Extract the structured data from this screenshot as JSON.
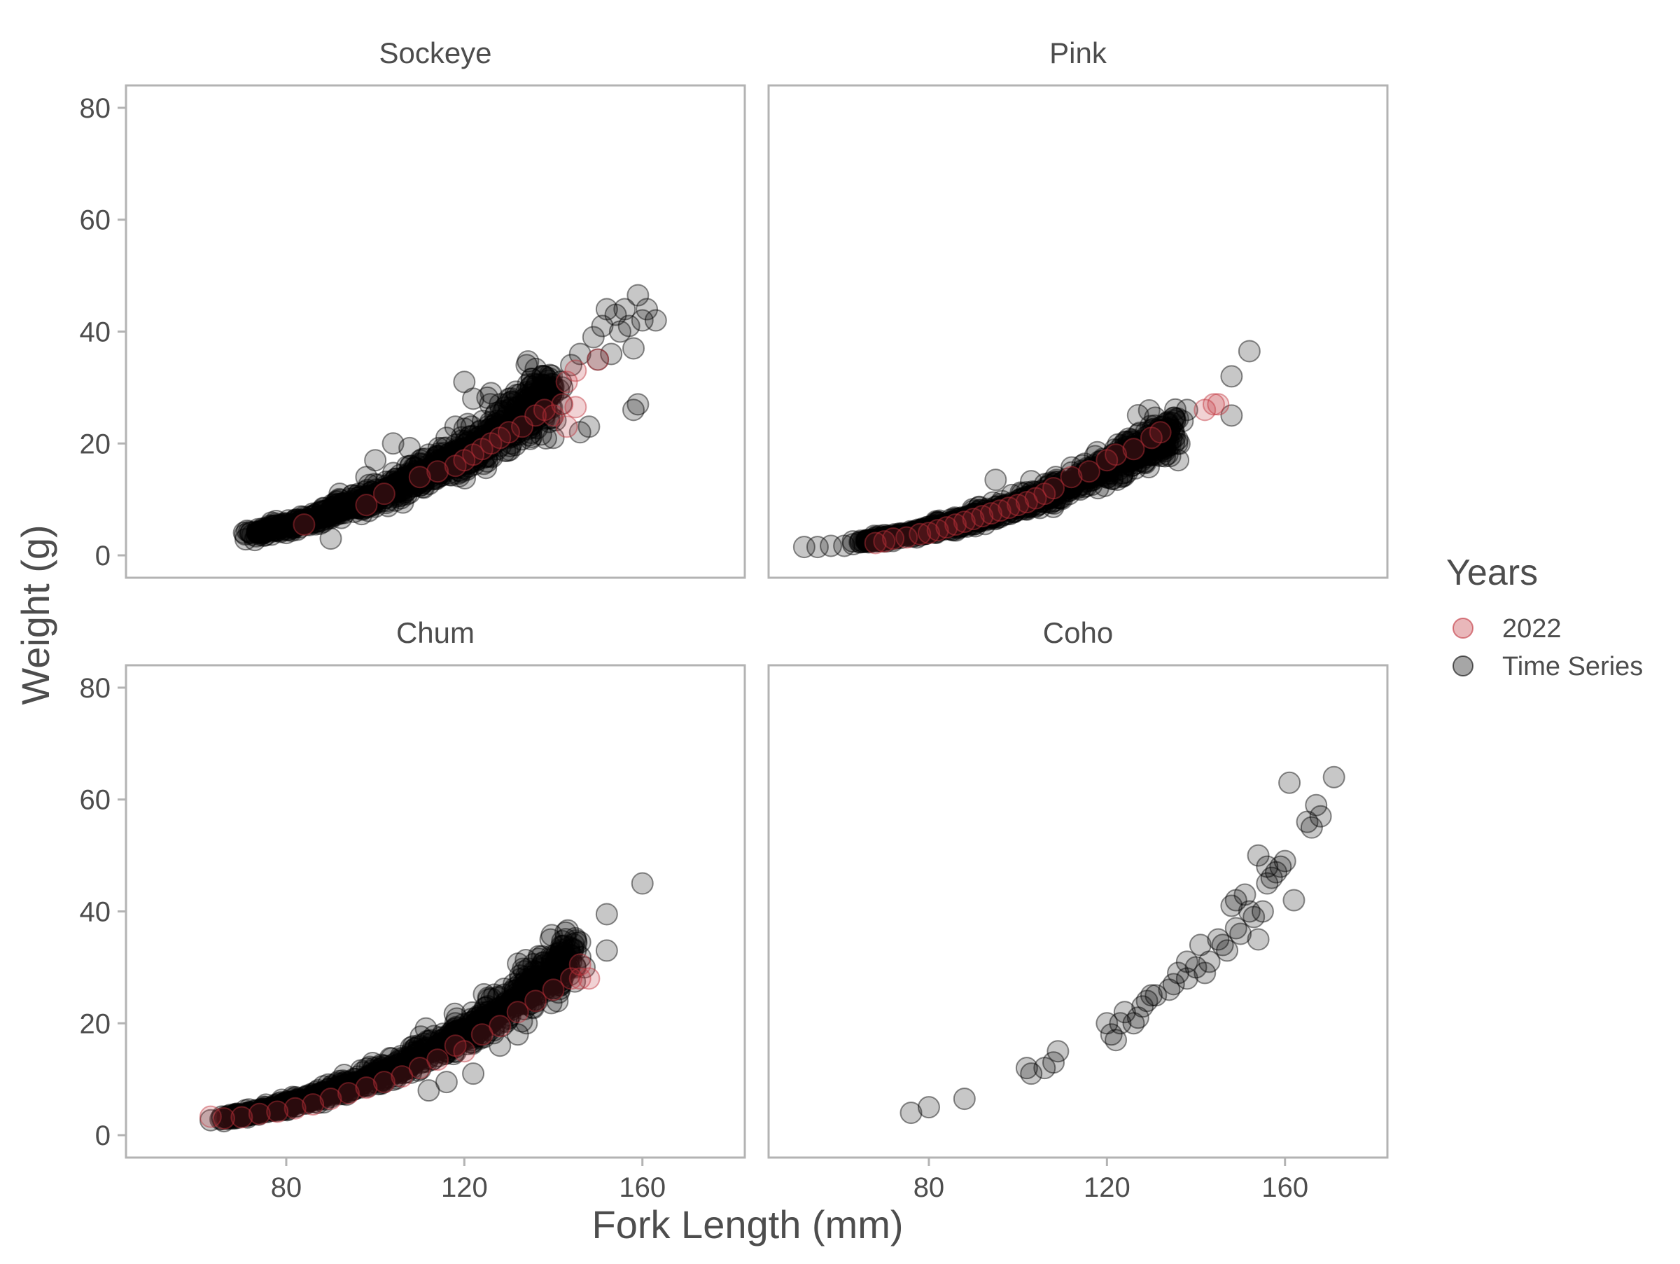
{
  "chart_data": {
    "type": "scatter",
    "xlabel": "Fork Length (mm)",
    "ylabel": "Weight (g)",
    "xlim": [
      44,
      183
    ],
    "ylim": [
      -4,
      84
    ],
    "xticks": [
      80,
      120,
      160
    ],
    "yticks": [
      0,
      20,
      40,
      60,
      80
    ],
    "grid": false,
    "legend": {
      "title": "Years",
      "position": "right",
      "entries": [
        {
          "label": "2022",
          "color": "#c0303a"
        },
        {
          "label": "Time Series",
          "color": "#1a1a1a"
        }
      ]
    },
    "colors": {
      "2022": "#c0303a",
      "Time Series": "#000000"
    },
    "panels": [
      {
        "title": "Sockeye",
        "time_series": {
          "dense_curve": {
            "a": 8.3e-06,
            "b": 3.05,
            "x_range": [
              72,
              140
            ],
            "scatter_sd": 0.1
          },
          "points": [
            [
              72,
              4
            ],
            [
              75,
              3.5
            ],
            [
              80,
              4
            ],
            [
              84,
              6
            ],
            [
              88,
              8
            ],
            [
              90,
              3
            ],
            [
              92,
              11
            ],
            [
              98,
              14
            ],
            [
              100,
              17
            ],
            [
              104,
              20
            ],
            [
              108,
              16
            ],
            [
              112,
              18
            ],
            [
              116,
              21
            ],
            [
              118,
              23
            ],
            [
              120,
              31
            ],
            [
              122,
              28
            ],
            [
              126,
              29
            ],
            [
              128,
              27
            ],
            [
              130,
              26
            ],
            [
              132,
              24
            ],
            [
              134,
              34
            ],
            [
              136,
              30
            ],
            [
              138,
              32
            ],
            [
              140,
              21
            ],
            [
              142,
              30
            ],
            [
              144,
              34
            ],
            [
              146,
              22
            ],
            [
              148,
              23
            ],
            [
              149,
              39
            ],
            [
              150,
              35
            ],
            [
              151,
              41
            ],
            [
              152,
              44
            ],
            [
              153,
              36
            ],
            [
              154,
              43
            ],
            [
              155,
              40
            ],
            [
              156,
              44
            ],
            [
              157,
              41
            ],
            [
              158,
              37
            ],
            [
              159,
              46.5
            ],
            [
              160,
              42
            ],
            [
              161,
              44
            ],
            [
              163,
              42
            ],
            [
              158,
              26
            ],
            [
              159,
              27
            ],
            [
              146,
              36
            ]
          ]
        },
        "y2022": {
          "points": [
            [
              84,
              5.5
            ],
            [
              98,
              9
            ],
            [
              102,
              11
            ],
            [
              110,
              14
            ],
            [
              114,
              15
            ],
            [
              118,
              16
            ],
            [
              120,
              17
            ],
            [
              122,
              18
            ],
            [
              124,
              19
            ],
            [
              126,
              20
            ],
            [
              128,
              21
            ],
            [
              130,
              22
            ],
            [
              133,
              23
            ],
            [
              136,
              25
            ],
            [
              138,
              26
            ],
            [
              140,
              25
            ],
            [
              142,
              27
            ],
            [
              143,
              23
            ],
            [
              145,
              26.5
            ],
            [
              143,
              31
            ],
            [
              145,
              33
            ],
            [
              150,
              35
            ]
          ]
        }
      },
      {
        "title": "Pink",
        "time_series": {
          "dense_curve": {
            "a": 6.5e-06,
            "b": 3.07,
            "x_range": [
              65,
              135
            ],
            "scatter_sd": 0.09
          },
          "points": [
            [
              52,
              1.5
            ],
            [
              55,
              1.5
            ],
            [
              58,
              1.7
            ],
            [
              61,
              1.7
            ],
            [
              63,
              2
            ],
            [
              66,
              2.5
            ],
            [
              69,
              3.5
            ],
            [
              95,
              13.5
            ],
            [
              108,
              12
            ],
            [
              110,
              13
            ],
            [
              118,
              12
            ],
            [
              124,
              16
            ],
            [
              130,
              18
            ],
            [
              134,
              22
            ],
            [
              136,
              17
            ],
            [
              137,
              24
            ],
            [
              138,
              26
            ],
            [
              148,
              25
            ],
            [
              148,
              32
            ],
            [
              152,
              36.5
            ]
          ]
        },
        "y2022": {
          "points": [
            [
              68,
              2.2
            ],
            [
              70,
              2.5
            ],
            [
              72,
              3
            ],
            [
              75,
              3.2
            ],
            [
              78,
              3.8
            ],
            [
              80,
              4
            ],
            [
              82,
              4.5
            ],
            [
              84,
              5
            ],
            [
              86,
              5.5
            ],
            [
              88,
              6
            ],
            [
              90,
              6.5
            ],
            [
              92,
              7
            ],
            [
              94,
              7.5
            ],
            [
              96,
              8
            ],
            [
              98,
              8.5
            ],
            [
              100,
              9
            ],
            [
              102,
              9.5
            ],
            [
              104,
              10.2
            ],
            [
              106,
              11
            ],
            [
              108,
              12
            ],
            [
              112,
              14
            ],
            [
              116,
              15
            ],
            [
              120,
              17
            ],
            [
              122,
              18
            ],
            [
              126,
              19
            ],
            [
              130,
              21
            ],
            [
              132,
              22
            ],
            [
              142,
              26
            ],
            [
              144,
              27
            ],
            [
              145,
              27
            ]
          ]
        }
      },
      {
        "title": "Chum",
        "time_series": {
          "dense_curve": {
            "a": 9.2e-06,
            "b": 3.03,
            "x_range": [
              66,
              145
            ],
            "scatter_sd": 0.08
          },
          "points": [
            [
              66,
              2.5
            ],
            [
              68,
              3
            ],
            [
              112,
              8
            ],
            [
              116,
              9.5
            ],
            [
              122,
              11
            ],
            [
              128,
              16
            ],
            [
              132,
              18
            ],
            [
              134,
              20
            ],
            [
              136,
              24
            ],
            [
              138,
              28
            ],
            [
              140,
              27
            ],
            [
              142,
              29
            ],
            [
              144,
              31
            ],
            [
              145,
              33
            ],
            [
              146,
              34.5
            ],
            [
              147,
              30
            ],
            [
              152,
              33
            ],
            [
              152,
              39.5
            ],
            [
              160,
              45
            ]
          ]
        },
        "y2022": {
          "points": [
            [
              63,
              3.3
            ],
            [
              66,
              3
            ],
            [
              70,
              3.2
            ],
            [
              74,
              3.8
            ],
            [
              78,
              4.2
            ],
            [
              82,
              4.8
            ],
            [
              86,
              5.5
            ],
            [
              90,
              6.5
            ],
            [
              94,
              7.5
            ],
            [
              98,
              8.5
            ],
            [
              102,
              9.5
            ],
            [
              106,
              10.5
            ],
            [
              110,
              12
            ],
            [
              114,
              13.5
            ],
            [
              118,
              16
            ],
            [
              120,
              15
            ],
            [
              124,
              18
            ],
            [
              128,
              19.5
            ],
            [
              132,
              22
            ],
            [
              136,
              24
            ],
            [
              140,
              26
            ],
            [
              144,
              28
            ],
            [
              146,
              28
            ],
            [
              146,
              30.5
            ],
            [
              148,
              28
            ]
          ]
        }
      },
      {
        "title": "Coho",
        "time_series": {
          "points": [
            [
              76,
              4
            ],
            [
              80,
              5
            ],
            [
              88,
              6.5
            ],
            [
              102,
              12
            ],
            [
              103,
              11
            ],
            [
              106,
              12
            ],
            [
              108,
              13
            ],
            [
              109,
              15
            ],
            [
              120,
              20
            ],
            [
              121,
              18
            ],
            [
              122,
              17
            ],
            [
              123,
              20
            ],
            [
              124,
              22
            ],
            [
              126,
              20
            ],
            [
              127,
              21
            ],
            [
              128,
              23
            ],
            [
              129,
              24
            ],
            [
              130,
              25
            ],
            [
              131,
              25
            ],
            [
              134,
              26
            ],
            [
              135,
              27
            ],
            [
              136,
              29
            ],
            [
              138,
              31
            ],
            [
              138,
              28
            ],
            [
              140,
              30
            ],
            [
              141,
              34
            ],
            [
              142,
              29
            ],
            [
              143,
              31
            ],
            [
              145,
              35
            ],
            [
              146,
              34
            ],
            [
              147,
              33
            ],
            [
              148,
              41
            ],
            [
              149,
              37
            ],
            [
              150,
              36
            ],
            [
              151,
              43
            ],
            [
              152,
              40
            ],
            [
              153,
              39
            ],
            [
              154,
              35
            ],
            [
              155,
              40
            ],
            [
              156,
              45
            ],
            [
              157,
              46
            ],
            [
              158,
              47
            ],
            [
              159,
              48
            ],
            [
              160,
              49
            ],
            [
              162,
              42
            ],
            [
              161,
              63
            ],
            [
              165,
              56
            ],
            [
              166,
              55
            ],
            [
              167,
              59
            ],
            [
              168,
              57
            ],
            [
              171,
              64
            ],
            [
              149,
              42
            ],
            [
              154,
              50
            ],
            [
              156,
              48
            ]
          ]
        },
        "y2022": {
          "points": []
        }
      }
    ]
  }
}
